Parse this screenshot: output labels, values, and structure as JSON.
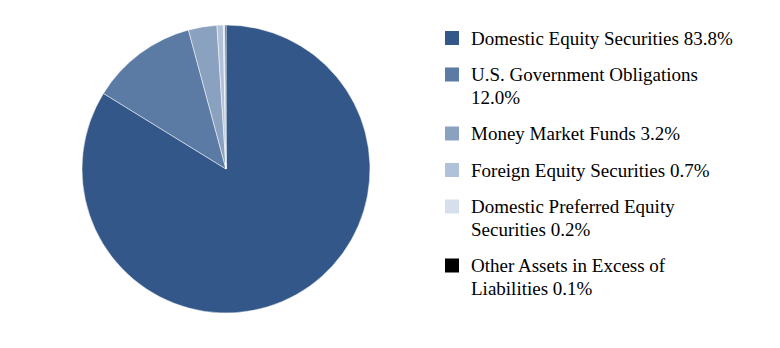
{
  "chart_data": {
    "type": "pie",
    "categories": [
      "Domestic Equity Securities",
      "U.S. Government Obligations",
      "Money Market Funds",
      "Foreign Equity Securities",
      "Domestic Preferred Equity Securities",
      "Other Assets in Excess of Liabilities"
    ],
    "values": [
      83.8,
      12.0,
      3.2,
      0.7,
      0.2,
      0.1
    ],
    "value_labels": [
      "83.8%",
      "12.0%",
      "3.2%",
      "0.7%",
      "0.2%",
      "0.1%"
    ],
    "colors": [
      "#34578a",
      "#5b7ba4",
      "#8aa1bf",
      "#b1c1d7",
      "#d6dfeb",
      "#000000"
    ],
    "legend": "right"
  }
}
